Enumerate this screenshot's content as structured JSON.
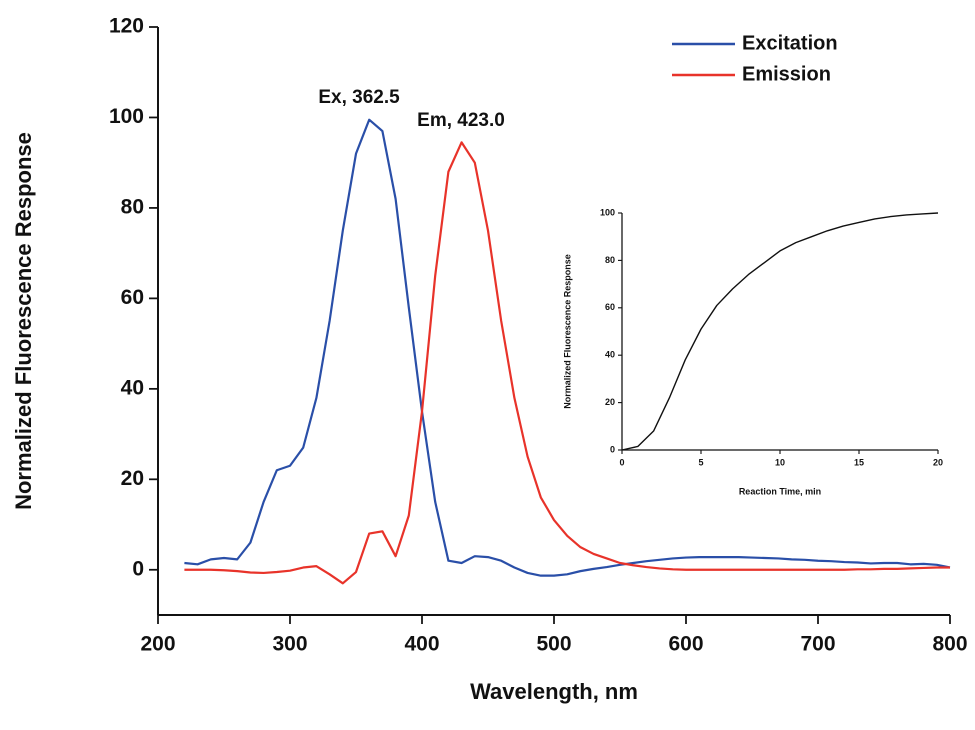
{
  "chart_data": [
    {
      "type": "line",
      "x_label": "Wavelength, nm",
      "y_label": "Normalized Fluorescence Response",
      "x": [
        220,
        230,
        240,
        250,
        260,
        270,
        280,
        290,
        300,
        310,
        320,
        330,
        340,
        350,
        360,
        370,
        380,
        390,
        400,
        410,
        420,
        430,
        440,
        450,
        460,
        470,
        480,
        490,
        500,
        510,
        520,
        530,
        540,
        550,
        560,
        570,
        580,
        590,
        600,
        610,
        620,
        630,
        640,
        650,
        660,
        670,
        680,
        690,
        700,
        710,
        720,
        730,
        740,
        750,
        760,
        770,
        780,
        790,
        800
      ],
      "series": [
        {
          "name": "Excitation",
          "color": "#2a4fa8",
          "values": [
            1.5,
            1.2,
            2.3,
            2.6,
            2.3,
            6,
            15,
            22,
            23,
            27,
            38,
            55,
            75,
            92,
            99.5,
            97,
            82,
            58,
            35,
            15,
            2,
            1.5,
            3,
            2.8,
            2,
            0.5,
            -0.7,
            -1.3,
            -1.3,
            -1,
            -0.3,
            0.2,
            0.6,
            1.1,
            1.5,
            1.9,
            2.2,
            2.5,
            2.7,
            2.8,
            2.8,
            2.8,
            2.8,
            2.7,
            2.6,
            2.5,
            2.3,
            2.2,
            2.0,
            1.9,
            1.7,
            1.6,
            1.4,
            1.5,
            1.5,
            1.2,
            1.3,
            1.1,
            0.5
          ]
        },
        {
          "name": "Emission",
          "color": "#e8332a",
          "values": [
            0,
            0,
            0,
            -0.1,
            -0.3,
            -0.6,
            -0.7,
            -0.5,
            -0.2,
            0.5,
            0.8,
            -1,
            -3,
            -0.5,
            8,
            8.5,
            3,
            12,
            35,
            65,
            88,
            94.5,
            90,
            75,
            55,
            38,
            25,
            16,
            11,
            7.5,
            5,
            3.5,
            2.5,
            1.5,
            1,
            0.6,
            0.3,
            0.1,
            0,
            0,
            0,
            0,
            0,
            0,
            0,
            0,
            0,
            0,
            0,
            0,
            0,
            0.1,
            0.1,
            0.2,
            0.2,
            0.3,
            0.4,
            0.5,
            0.5
          ]
        }
      ],
      "annotations": [
        "Ex, 362.5",
        "Em, 423.0"
      ],
      "xlim": [
        200,
        800
      ],
      "xticks": [
        200,
        300,
        400,
        500,
        600,
        700,
        800
      ],
      "ylim": [
        -10,
        120
      ],
      "yticks": [
        0,
        20,
        40,
        60,
        80,
        100,
        120
      ],
      "legend": "upper right"
    },
    {
      "type": "line",
      "x_label": "Reaction Time, min",
      "y_label": "Normalized Fluorescence Response",
      "x": [
        0,
        1,
        2,
        3,
        4,
        5,
        6,
        7,
        8,
        9,
        10,
        11,
        12,
        13,
        14,
        15,
        16,
        17,
        18,
        19,
        20
      ],
      "series": [
        {
          "color": "#111111",
          "values": [
            0,
            1.5,
            8,
            22,
            38,
            51,
            61,
            68,
            74,
            79,
            84,
            87.5,
            90,
            92.5,
            94.5,
            96,
            97.5,
            98.5,
            99.2,
            99.6,
            100
          ]
        }
      ],
      "xlim": [
        0,
        20
      ],
      "xticks": [
        0,
        5,
        10,
        15,
        20
      ],
      "ylim": [
        0,
        100
      ],
      "yticks": [
        0,
        20,
        40,
        60,
        80,
        100
      ]
    }
  ]
}
